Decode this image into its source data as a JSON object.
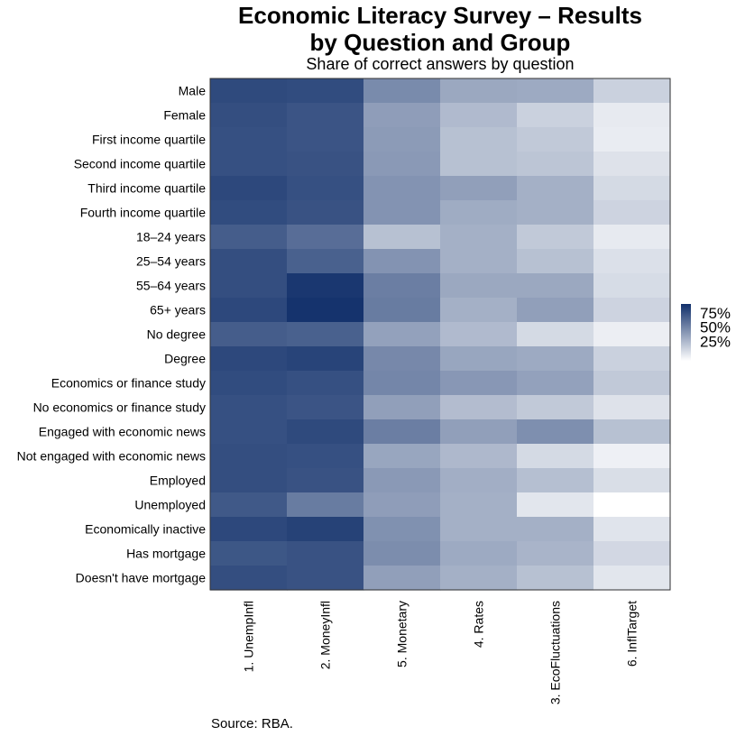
{
  "chart_data": {
    "type": "heatmap",
    "title_line1": "Economic Literacy Survey – Results",
    "title_line2": "by Question and Group",
    "subtitle": "Share of correct answers by question",
    "source": "Source:  RBA.",
    "x_labels": [
      "1. UnempInfl",
      "2. MoneyInfl",
      "5. Monetary",
      "4. Rates",
      "3. EcoFluctuations",
      "6. InflTarget"
    ],
    "y_labels": [
      "Male",
      "Female",
      "First income quartile",
      "Second income quartile",
      "Third income quartile",
      "Fourth income quartile",
      "18–24 years",
      "25–54 years",
      "55–64 years",
      "65+ years",
      "No degree",
      "Degree",
      "Economics or finance study",
      "No economics or finance study",
      "Engaged with economic news",
      "Not engaged with economic news",
      "Employed",
      "Unemployed",
      "Economically inactive",
      "Has mortgage",
      "Doesn't have mortgage"
    ],
    "values": [
      [
        87,
        86,
        56,
        42,
        41,
        22
      ],
      [
        85,
        82,
        47,
        33,
        22,
        10
      ],
      [
        84,
        82,
        48,
        30,
        26,
        9
      ],
      [
        84,
        83,
        49,
        30,
        28,
        14
      ],
      [
        88,
        84,
        52,
        46,
        38,
        18
      ],
      [
        86,
        83,
        52,
        40,
        38,
        21
      ],
      [
        78,
        70,
        30,
        38,
        26,
        10
      ],
      [
        85,
        76,
        52,
        38,
        30,
        15
      ],
      [
        85,
        96,
        62,
        42,
        42,
        17
      ],
      [
        88,
        98,
        63,
        38,
        46,
        21
      ],
      [
        78,
        76,
        45,
        33,
        18,
        8
      ],
      [
        88,
        90,
        57,
        43,
        41,
        22
      ],
      [
        86,
        84,
        58,
        50,
        45,
        26
      ],
      [
        84,
        82,
        46,
        32,
        26,
        14
      ],
      [
        84,
        87,
        62,
        46,
        54,
        30
      ],
      [
        85,
        84,
        43,
        34,
        18,
        7
      ],
      [
        85,
        83,
        49,
        39,
        31,
        16
      ],
      [
        80,
        63,
        47,
        38,
        12,
        0
      ],
      [
        88,
        91,
        53,
        38,
        38,
        13
      ],
      [
        81,
        83,
        55,
        41,
        36,
        19
      ],
      [
        85,
        83,
        46,
        38,
        30,
        12
      ]
    ],
    "color_low": "#ffffff",
    "color_high": "#102f6a",
    "value_range": [
      0,
      100
    ],
    "legend": {
      "ticks": [
        "75%",
        "50%",
        "25%"
      ],
      "tick_values": [
        75,
        50,
        25
      ],
      "position": "right"
    }
  }
}
